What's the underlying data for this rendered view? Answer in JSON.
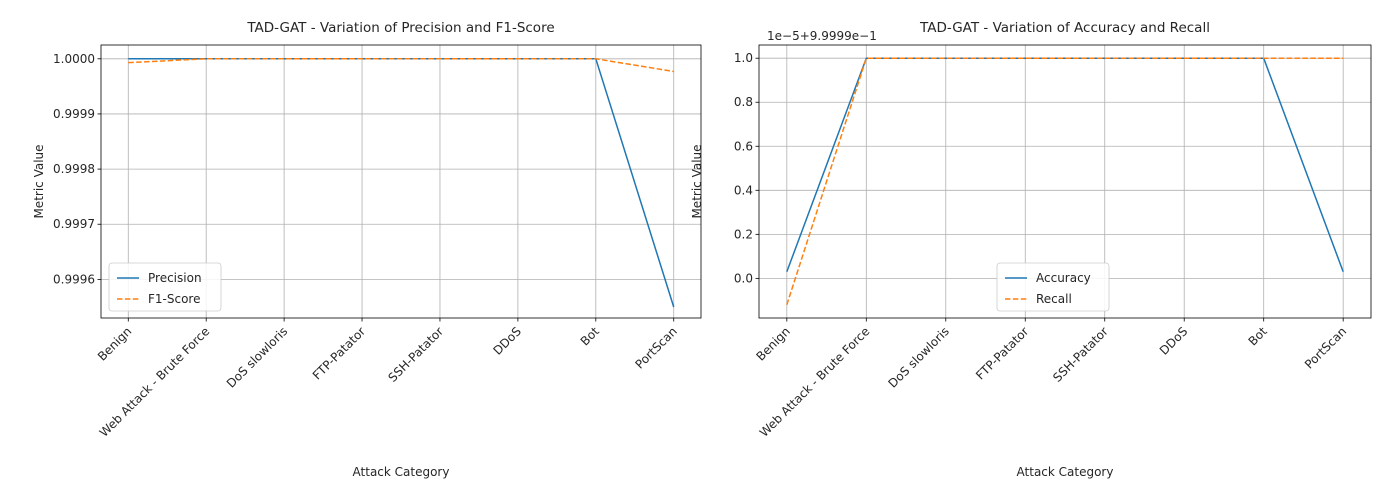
{
  "chart_data": [
    {
      "type": "line",
      "title": "TAD-GAT - Variation of Precision and F1-Score",
      "xlabel": "Attack Category",
      "ylabel": "Metric Value",
      "categories": [
        "Benign",
        "Web Attack - Brute Force",
        "DoS slowloris",
        "FTP-Patator",
        "SSH-Patator",
        "DDoS",
        "Bot",
        "PortScan"
      ],
      "ylim": [
        0.99953,
        1.000025
      ],
      "yticks": [
        0.9996,
        0.9997,
        0.9998,
        0.9999,
        1.0
      ],
      "ytick_labels": [
        "0.9996",
        "0.9997",
        "0.9998",
        "0.9999",
        "1.0000"
      ],
      "offset_text": "",
      "grid": true,
      "legend_position": "lower-left",
      "series": [
        {
          "name": "Precision",
          "color": "#1f77b4",
          "dash": "solid",
          "values": [
            1.0,
            1.0,
            1.0,
            1.0,
            1.0,
            1.0,
            1.0,
            0.99955
          ]
        },
        {
          "name": "F1-Score",
          "color": "#ff7f0e",
          "dash": "dashed",
          "values": [
            0.999993,
            1.0,
            1.0,
            1.0,
            1.0,
            1.0,
            1.0,
            0.999977
          ]
        }
      ]
    },
    {
      "type": "line",
      "title": "TAD-GAT - Variation of Accuracy and Recall",
      "xlabel": "Attack Category",
      "ylabel": "Metric Value",
      "categories": [
        "Benign",
        "Web Attack - Brute Force",
        "DoS slowloris",
        "FTP-Patator",
        "SSH-Patator",
        "DDoS",
        "Bot",
        "PortScan"
      ],
      "ylim": [
        -0.18,
        1.06
      ],
      "yticks": [
        0.0,
        0.2,
        0.4,
        0.6,
        0.8,
        1.0
      ],
      "ytick_labels": [
        "0.0",
        "0.2",
        "0.4",
        "0.6",
        "0.8",
        "1.0"
      ],
      "offset_text": "1e−5+9.9999e−1",
      "grid": true,
      "legend_position": "lower-center",
      "series": [
        {
          "name": "Accuracy",
          "color": "#1f77b4",
          "dash": "solid",
          "values": [
            0.03,
            1.0,
            1.0,
            1.0,
            1.0,
            1.0,
            1.0,
            0.03
          ]
        },
        {
          "name": "Recall",
          "color": "#ff7f0e",
          "dash": "dashed",
          "values": [
            -0.12,
            1.0,
            1.0,
            1.0,
            1.0,
            1.0,
            1.0,
            1.0
          ]
        }
      ]
    }
  ]
}
